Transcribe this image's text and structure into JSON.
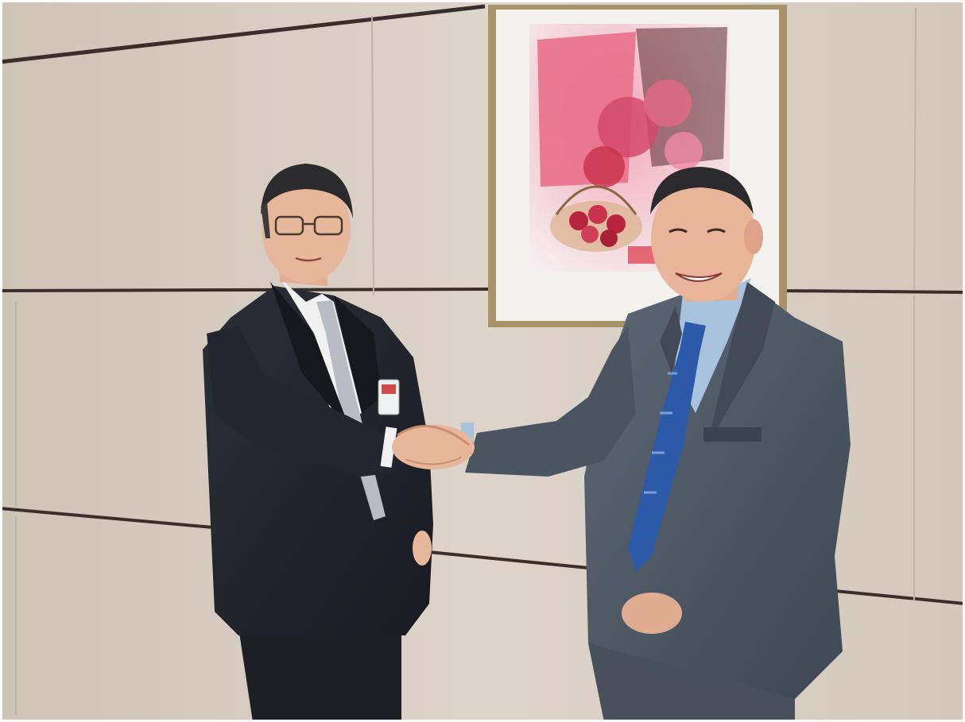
{
  "photo": {
    "description_tags": [
      "two-men",
      "handshake",
      "framed-painting",
      "office-wall"
    ],
    "colors": {
      "wall": "#d9cfc4",
      "wall_shadow": "#c9bdb0",
      "panel_seam": "#3a2e2a",
      "frame_gold": "#a8926a",
      "mat_white": "#f4f2ee",
      "painting_pink": "#e9708a",
      "painting_red": "#c8324a",
      "suit_dark": "#22252d",
      "suit_grey": "#4f5a67",
      "shirt_white": "#f1f1f1",
      "shirt_blue": "#a9c3de",
      "tie_silver": "#b9bcc2",
      "tie_blue": "#2d5aa8",
      "skin": "#e6b79a",
      "hair_dark": "#2b2a2c"
    }
  }
}
